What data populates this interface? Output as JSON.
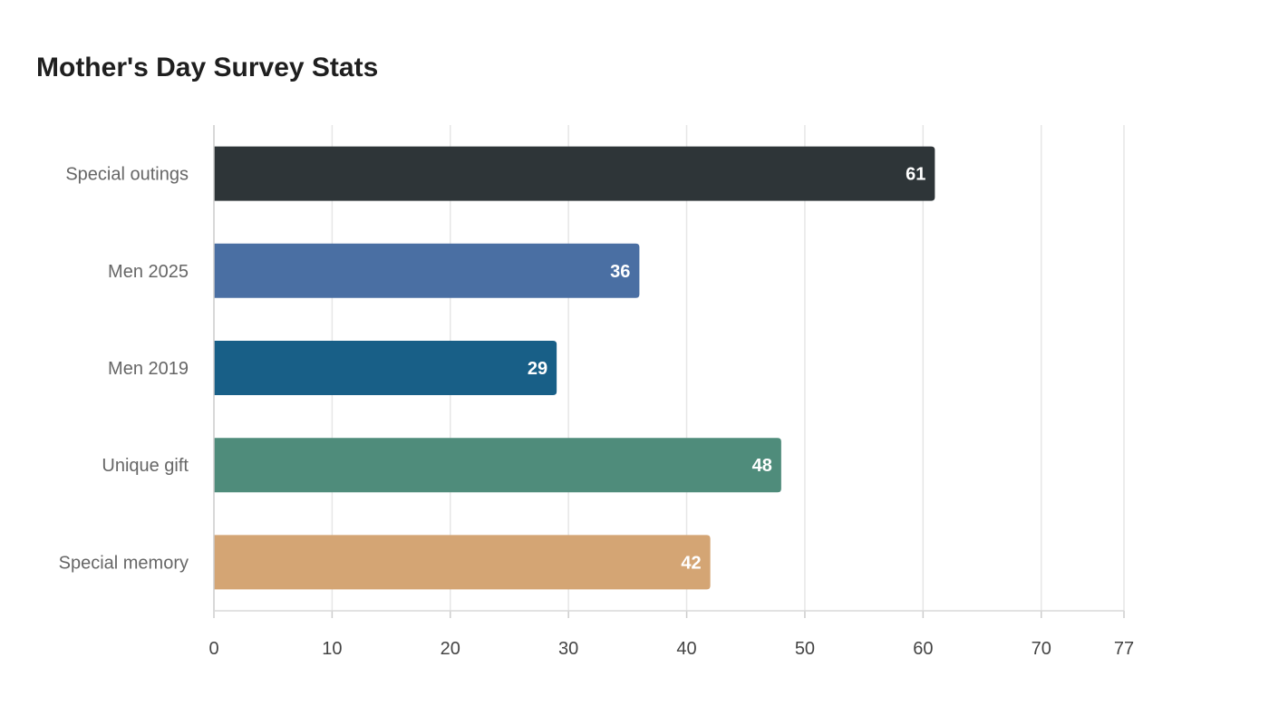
{
  "chart_data": {
    "type": "bar",
    "orientation": "horizontal",
    "title": "Mother's Day Survey Stats",
    "xlabel": "",
    "ylabel": "",
    "categories": [
      "Special outings",
      "Men 2025",
      "Men 2019",
      "Unique gift",
      "Special memory"
    ],
    "values": [
      61,
      36,
      29,
      48,
      42
    ],
    "colors": [
      "#2e3538",
      "#4a6fa3",
      "#185f87",
      "#4f8c7b",
      "#d4a574"
    ],
    "xlim": [
      0,
      77
    ],
    "xticks": [
      0,
      10,
      20,
      30,
      40,
      50,
      60,
      70,
      77
    ],
    "grid": true,
    "legend": "none"
  }
}
